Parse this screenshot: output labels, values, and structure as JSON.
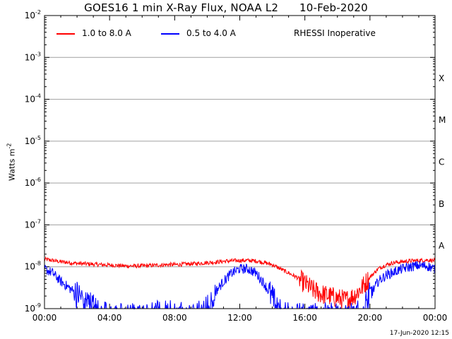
{
  "title": "GOES16 1 min X-Ray Flux, NOAA L2      10-Feb-2020",
  "footer": "17-Jun-2020 12:15",
  "note": "RHESSI Inoperative",
  "colors": {
    "long": "#ff0000",
    "short": "#0000ff",
    "grid": "#a0a0a0",
    "axis": "#000000"
  },
  "chart_data": {
    "type": "line",
    "title": "GOES16 1 min X-Ray Flux, NOAA L2      10-Feb-2020",
    "ylabel": "Watts m",
    "ylabel_exp": "-2",
    "yscale": "log",
    "ylim_exp": [
      -9,
      -2
    ],
    "yticks": [
      {
        "base": "10",
        "exp": "-9"
      },
      {
        "base": "10",
        "exp": "-8"
      },
      {
        "base": "10",
        "exp": "-7"
      },
      {
        "base": "10",
        "exp": "-6"
      },
      {
        "base": "10",
        "exp": "-5"
      },
      {
        "base": "10",
        "exp": "-4"
      },
      {
        "base": "10",
        "exp": "-3"
      },
      {
        "base": "10",
        "exp": "-2"
      }
    ],
    "xticks": [
      "00:00",
      "04:00",
      "08:00",
      "12:00",
      "16:00",
      "20:00",
      "00:00"
    ],
    "xlim_hours": [
      0,
      24
    ],
    "flare_classes": [
      {
        "label": "A",
        "exp": -8
      },
      {
        "label": "B",
        "exp": -7
      },
      {
        "label": "C",
        "exp": -6
      },
      {
        "label": "M",
        "exp": -5
      },
      {
        "label": "X",
        "exp": -4
      }
    ],
    "grid": true,
    "legend_position": "top-left",
    "series": [
      {
        "name": "1.0 to 8.0 A",
        "color": "#ff0000",
        "x_hours": [
          0,
          0.5,
          1,
          1.5,
          2,
          2.5,
          3,
          3.5,
          4,
          4.5,
          5,
          5.5,
          6,
          6.5,
          7,
          7.5,
          8,
          8.5,
          9,
          9.5,
          10,
          10.5,
          11,
          11.5,
          12,
          12.5,
          13,
          13.5,
          14,
          14.5,
          15,
          15.5,
          16,
          16.5,
          17,
          17.5,
          18,
          18.5,
          19,
          19.5,
          20,
          20.5,
          21,
          21.5,
          22,
          22.5,
          23,
          23.5,
          24
        ],
        "log10_flux": [
          -7.82,
          -7.85,
          -7.88,
          -7.9,
          -7.92,
          -7.93,
          -7.94,
          -7.95,
          -7.96,
          -7.97,
          -7.98,
          -7.98,
          -7.98,
          -7.97,
          -7.96,
          -7.95,
          -7.95,
          -7.94,
          -7.93,
          -7.92,
          -7.9,
          -7.89,
          -7.87,
          -7.86,
          -7.85,
          -7.85,
          -7.86,
          -7.9,
          -7.95,
          -8.05,
          -8.15,
          -8.25,
          -8.4,
          -8.55,
          -8.65,
          -8.7,
          -8.75,
          -8.8,
          -8.7,
          -8.5,
          -8.25,
          -8.05,
          -7.95,
          -7.9,
          -7.88,
          -7.86,
          -7.85,
          -7.84,
          -7.85
        ]
      },
      {
        "name": "0.5 to 4.0 A",
        "color": "#0000ff",
        "x_hours": [
          0,
          0.5,
          1,
          1.5,
          2,
          2.5,
          3,
          3.5,
          4,
          4.5,
          5,
          5.5,
          6,
          6.5,
          7,
          7.5,
          8,
          8.5,
          9,
          9.5,
          10,
          10.5,
          11,
          11.5,
          12,
          12.5,
          13,
          13.5,
          14,
          14.5,
          15,
          15.5,
          16,
          16.5,
          17,
          17.5,
          18,
          18.5,
          19,
          19.5,
          20,
          20.5,
          21,
          21.5,
          22,
          22.5,
          23,
          23.5,
          24
        ],
        "log10_flux": [
          -8.05,
          -8.15,
          -8.35,
          -8.5,
          -8.65,
          -8.8,
          -8.95,
          -9.1,
          -9.2,
          -9.2,
          -9.2,
          -9.2,
          -9.2,
          -9.2,
          -9.15,
          -9.15,
          -9.15,
          -9.2,
          -9.2,
          -9.15,
          -8.95,
          -8.6,
          -8.35,
          -8.15,
          -8.05,
          -8.05,
          -8.15,
          -8.4,
          -8.75,
          -9.1,
          -9.2,
          -9.2,
          -9.2,
          -9.2,
          -9.2,
          -9.2,
          -9.2,
          -9.2,
          -9.2,
          -9.1,
          -8.7,
          -8.35,
          -8.2,
          -8.12,
          -8.05,
          -8.0,
          -7.97,
          -7.98,
          -8.05
        ]
      }
    ]
  },
  "legend": [
    {
      "label": "1.0 to 8.0 A",
      "color": "#ff0000"
    },
    {
      "label": "0.5 to 4.0 A",
      "color": "#0000ff"
    }
  ]
}
